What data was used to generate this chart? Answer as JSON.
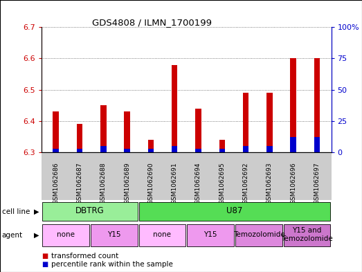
{
  "title": "GDS4808 / ILMN_1700199",
  "samples": [
    "GSM1062686",
    "GSM1062687",
    "GSM1062688",
    "GSM1062689",
    "GSM1062690",
    "GSM1062691",
    "GSM1062694",
    "GSM1062695",
    "GSM1062692",
    "GSM1062693",
    "GSM1062696",
    "GSM1062697"
  ],
  "transformed_counts": [
    6.43,
    6.39,
    6.45,
    6.43,
    6.34,
    6.58,
    6.44,
    6.34,
    6.49,
    6.49,
    6.6,
    6.6
  ],
  "percentile_ranks_pct": [
    3,
    3,
    5,
    3,
    3,
    5,
    3,
    3,
    5,
    5,
    12,
    12
  ],
  "baseline": 6.3,
  "ylim_left": [
    6.3,
    6.7
  ],
  "ylim_right": [
    0,
    100
  ],
  "yticks_left": [
    6.3,
    6.4,
    6.5,
    6.6,
    6.7
  ],
  "yticks_right": [
    0,
    25,
    50,
    75,
    100
  ],
  "bar_color_red": "#cc0000",
  "bar_color_blue": "#0000cc",
  "cell_line_groups": [
    {
      "label": "DBTRG",
      "start": 0,
      "end": 3,
      "color": "#99ee99"
    },
    {
      "label": "U87",
      "start": 4,
      "end": 11,
      "color": "#55dd55"
    }
  ],
  "agent_groups": [
    {
      "label": "none",
      "start": 0,
      "end": 1,
      "color": "#ffbbff"
    },
    {
      "label": "Y15",
      "start": 2,
      "end": 3,
      "color": "#ee99ee"
    },
    {
      "label": "none",
      "start": 4,
      "end": 5,
      "color": "#ffbbff"
    },
    {
      "label": "Y15",
      "start": 6,
      "end": 7,
      "color": "#ee99ee"
    },
    {
      "label": "Temozolomide",
      "start": 8,
      "end": 9,
      "color": "#dd88dd"
    },
    {
      "label": "Y15 and\nTemozolomide",
      "start": 10,
      "end": 11,
      "color": "#cc77cc"
    }
  ],
  "background_color": "#ffffff",
  "plot_bg_color": "#ffffff",
  "tick_bg_color": "#cccccc",
  "tick_label_color_left": "#cc0000",
  "tick_label_color_right": "#0000cc",
  "gridline_color": "#555555"
}
